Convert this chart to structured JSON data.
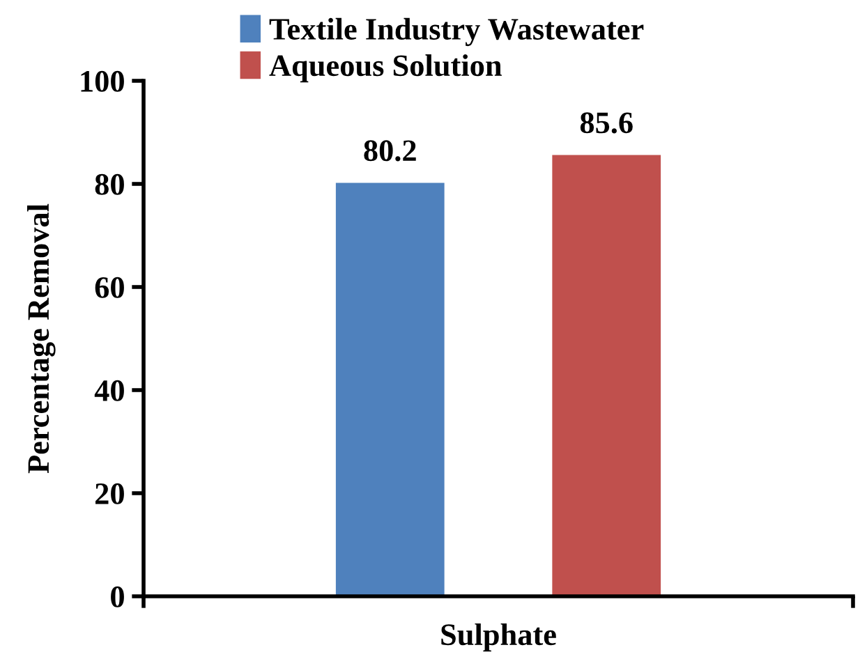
{
  "chart_data": {
    "type": "bar",
    "categories": [
      "Sulphate"
    ],
    "ylabel": "Percentage Removal",
    "series": [
      {
        "name": "Textile Industry Wastewater",
        "color": "#4f81bd",
        "values": [
          80.2
        ]
      },
      {
        "name": "Aqueous Solution",
        "color": "#c0504d",
        "values": [
          85.6
        ]
      }
    ],
    "ylim": [
      0,
      100
    ],
    "yticks": [
      0,
      20,
      40,
      60,
      80,
      100
    ],
    "data_labels": true,
    "legend": "top",
    "grid": false
  }
}
